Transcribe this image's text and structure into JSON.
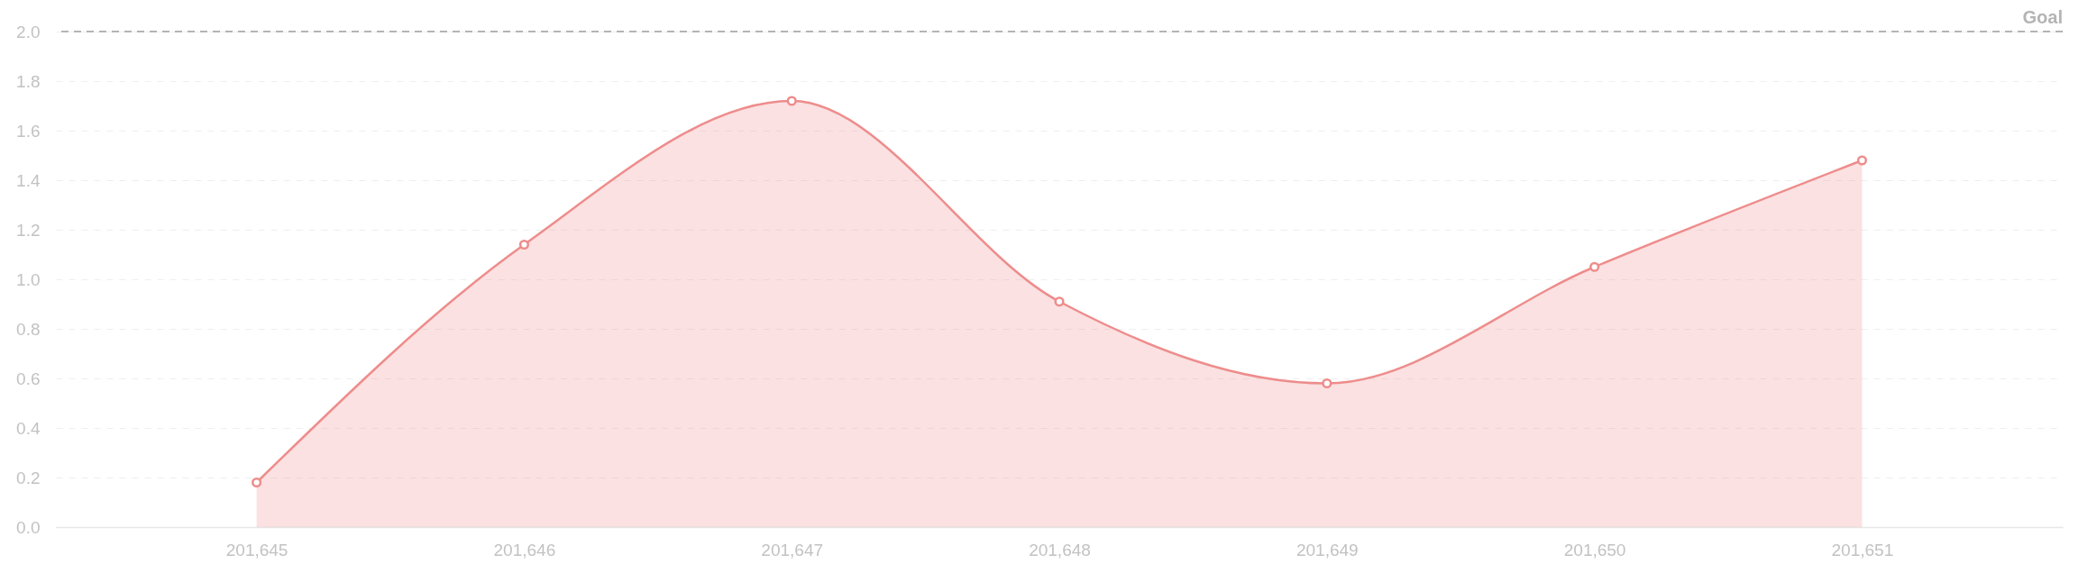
{
  "chart_data": {
    "type": "area",
    "x": [
      201645,
      201646,
      201647,
      201648,
      201649,
      201650,
      201651
    ],
    "series": [
      {
        "color": "#ee8c8c",
        "values": [
          0.18,
          1.14,
          1.72,
          0.91,
          0.58,
          1.05,
          1.48
        ]
      }
    ],
    "xlim": [
      201644.25,
      201651.75
    ],
    "xticks": [
      {
        "value": 201645,
        "label": "201,645"
      },
      {
        "value": 201646,
        "label": "201,646"
      },
      {
        "value": 201647,
        "label": "201,647"
      },
      {
        "value": 201648,
        "label": "201,648"
      },
      {
        "value": 201649,
        "label": "201,649"
      },
      {
        "value": 201650,
        "label": "201,650"
      },
      {
        "value": 201651,
        "label": "201,651"
      }
    ],
    "ylim": [
      0,
      2
    ],
    "yticks": [
      {
        "value": 0,
        "label": "0.0"
      },
      0.2,
      0.4,
      0.6,
      0.8,
      {
        "value": 1,
        "label": "1.0"
      },
      1.2,
      1.4,
      1.6,
      1.8,
      {
        "value": 2,
        "label": "2.0"
      }
    ],
    "grid": "y",
    "marker": "circle",
    "ref_lines": [
      {
        "axis": "y",
        "value": 2,
        "label": "Goal",
        "color": "#b4b4b4",
        "line_style": "dashed"
      }
    ]
  }
}
